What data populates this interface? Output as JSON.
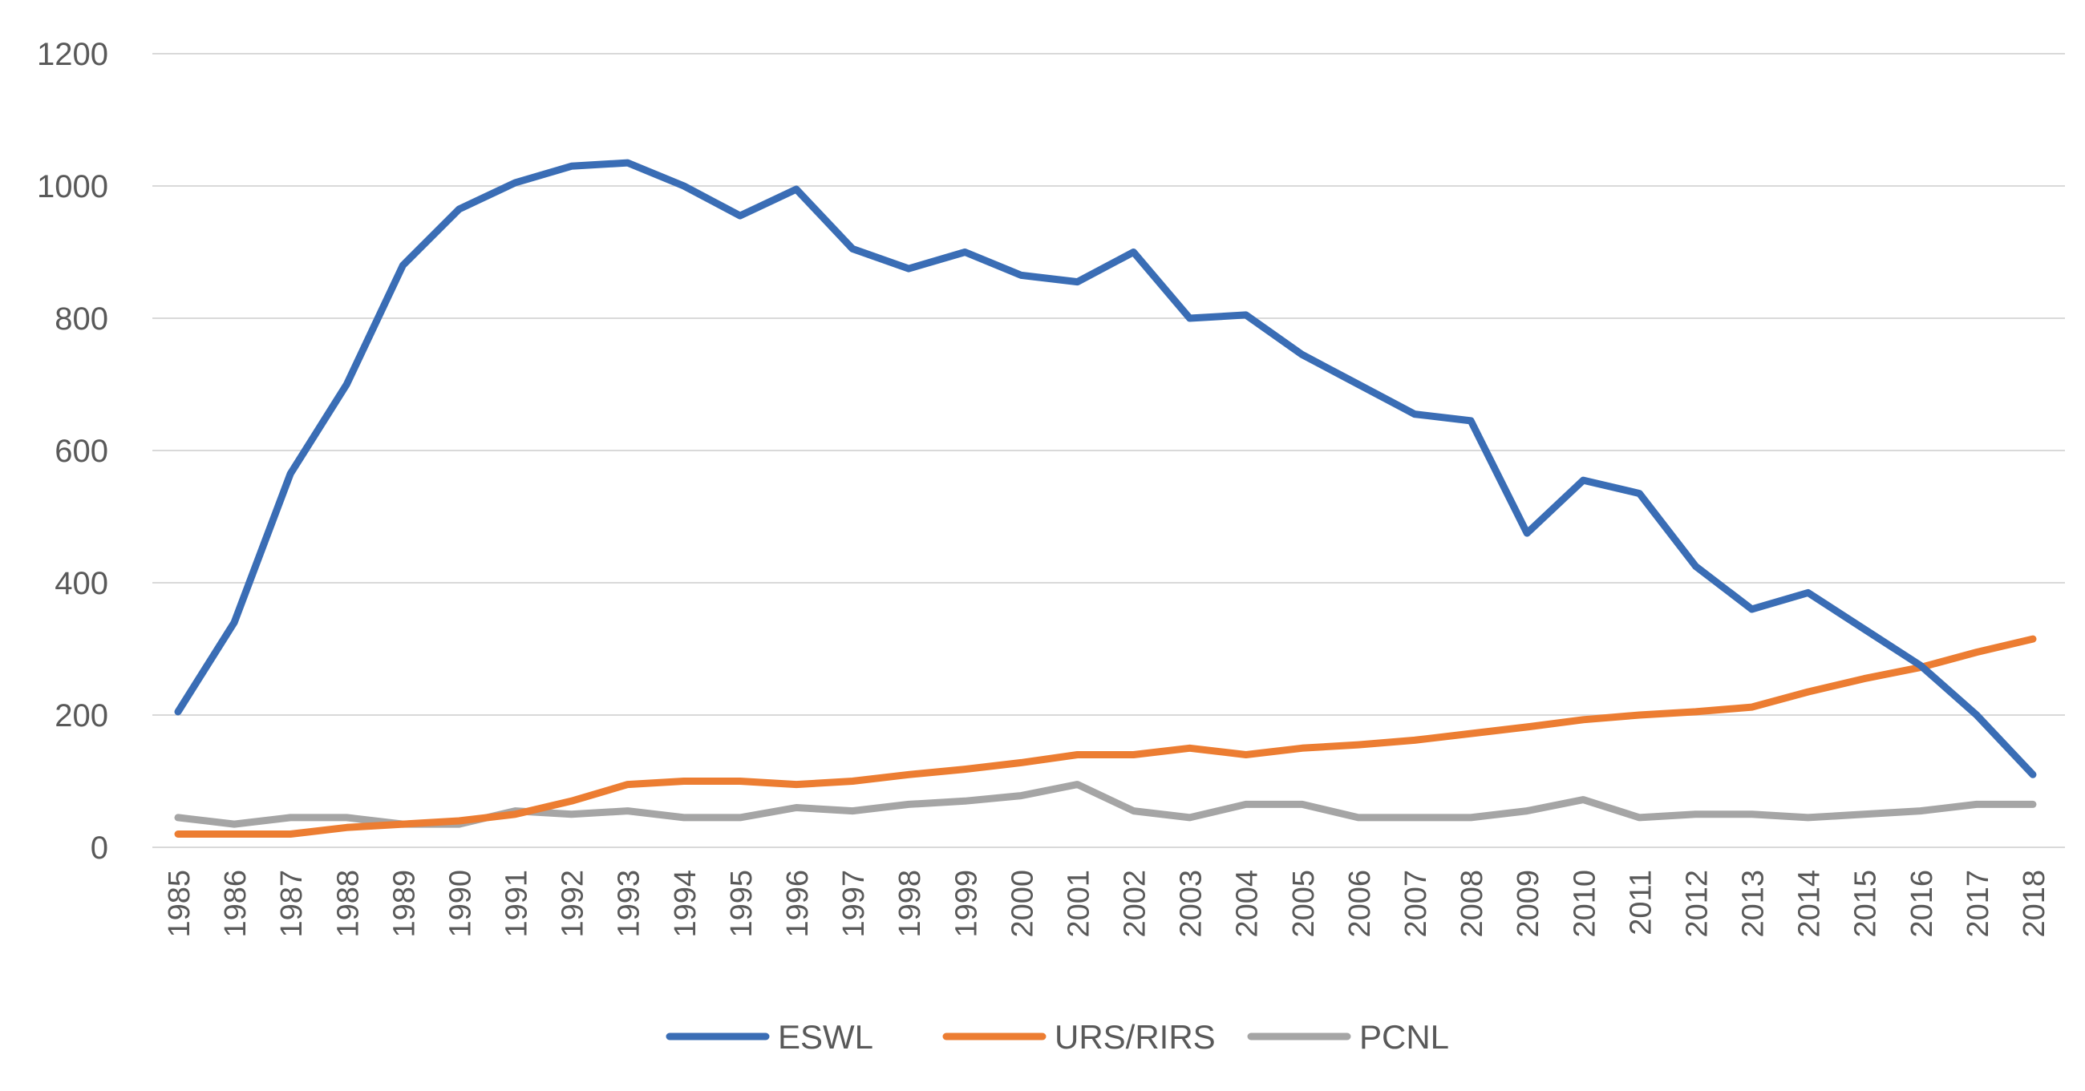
{
  "chart_data": {
    "type": "line",
    "title": "",
    "xlabel": "",
    "ylabel": "",
    "ylim": [
      0,
      1200
    ],
    "y_ticks": [
      "0",
      "200",
      "400",
      "600",
      "800",
      "1000",
      "1200"
    ],
    "grid": true,
    "legend_position": "bottom",
    "categories": [
      "1985",
      "1986",
      "1987",
      "1988",
      "1989",
      "1990",
      "1991",
      "1992",
      "1993",
      "1994",
      "1995",
      "1996",
      "1997",
      "1998",
      "1999",
      "2000",
      "2001",
      "2002",
      "2003",
      "2004",
      "2005",
      "2006",
      "2007",
      "2008",
      "2009",
      "2010",
      "2011",
      "2012",
      "2013",
      "2014",
      "2015",
      "2016",
      "2017",
      "2018"
    ],
    "series": [
      {
        "name": "ESWL",
        "color": "#3a6db5",
        "values": [
          205,
          340,
          565,
          700,
          880,
          965,
          1005,
          1030,
          1035,
          1000,
          955,
          995,
          905,
          875,
          900,
          865,
          855,
          900,
          800,
          805,
          745,
          700,
          655,
          645,
          475,
          555,
          535,
          425,
          360,
          385,
          330,
          275,
          200,
          110
        ]
      },
      {
        "name": "URS/RIRS",
        "color": "#ec7d32",
        "values": [
          20,
          20,
          20,
          30,
          35,
          40,
          50,
          70,
          95,
          100,
          100,
          95,
          100,
          110,
          118,
          128,
          140,
          140,
          150,
          140,
          150,
          155,
          162,
          172,
          182,
          193,
          200,
          205,
          212,
          235,
          255,
          272,
          295,
          315
        ]
      },
      {
        "name": "PCNL",
        "color": "#a5a5a5",
        "values": [
          45,
          35,
          45,
          45,
          35,
          35,
          55,
          50,
          55,
          45,
          45,
          60,
          55,
          65,
          70,
          78,
          95,
          55,
          45,
          65,
          65,
          45,
          45,
          45,
          55,
          72,
          45,
          50,
          50,
          45,
          50,
          55,
          65,
          65
        ]
      }
    ]
  }
}
